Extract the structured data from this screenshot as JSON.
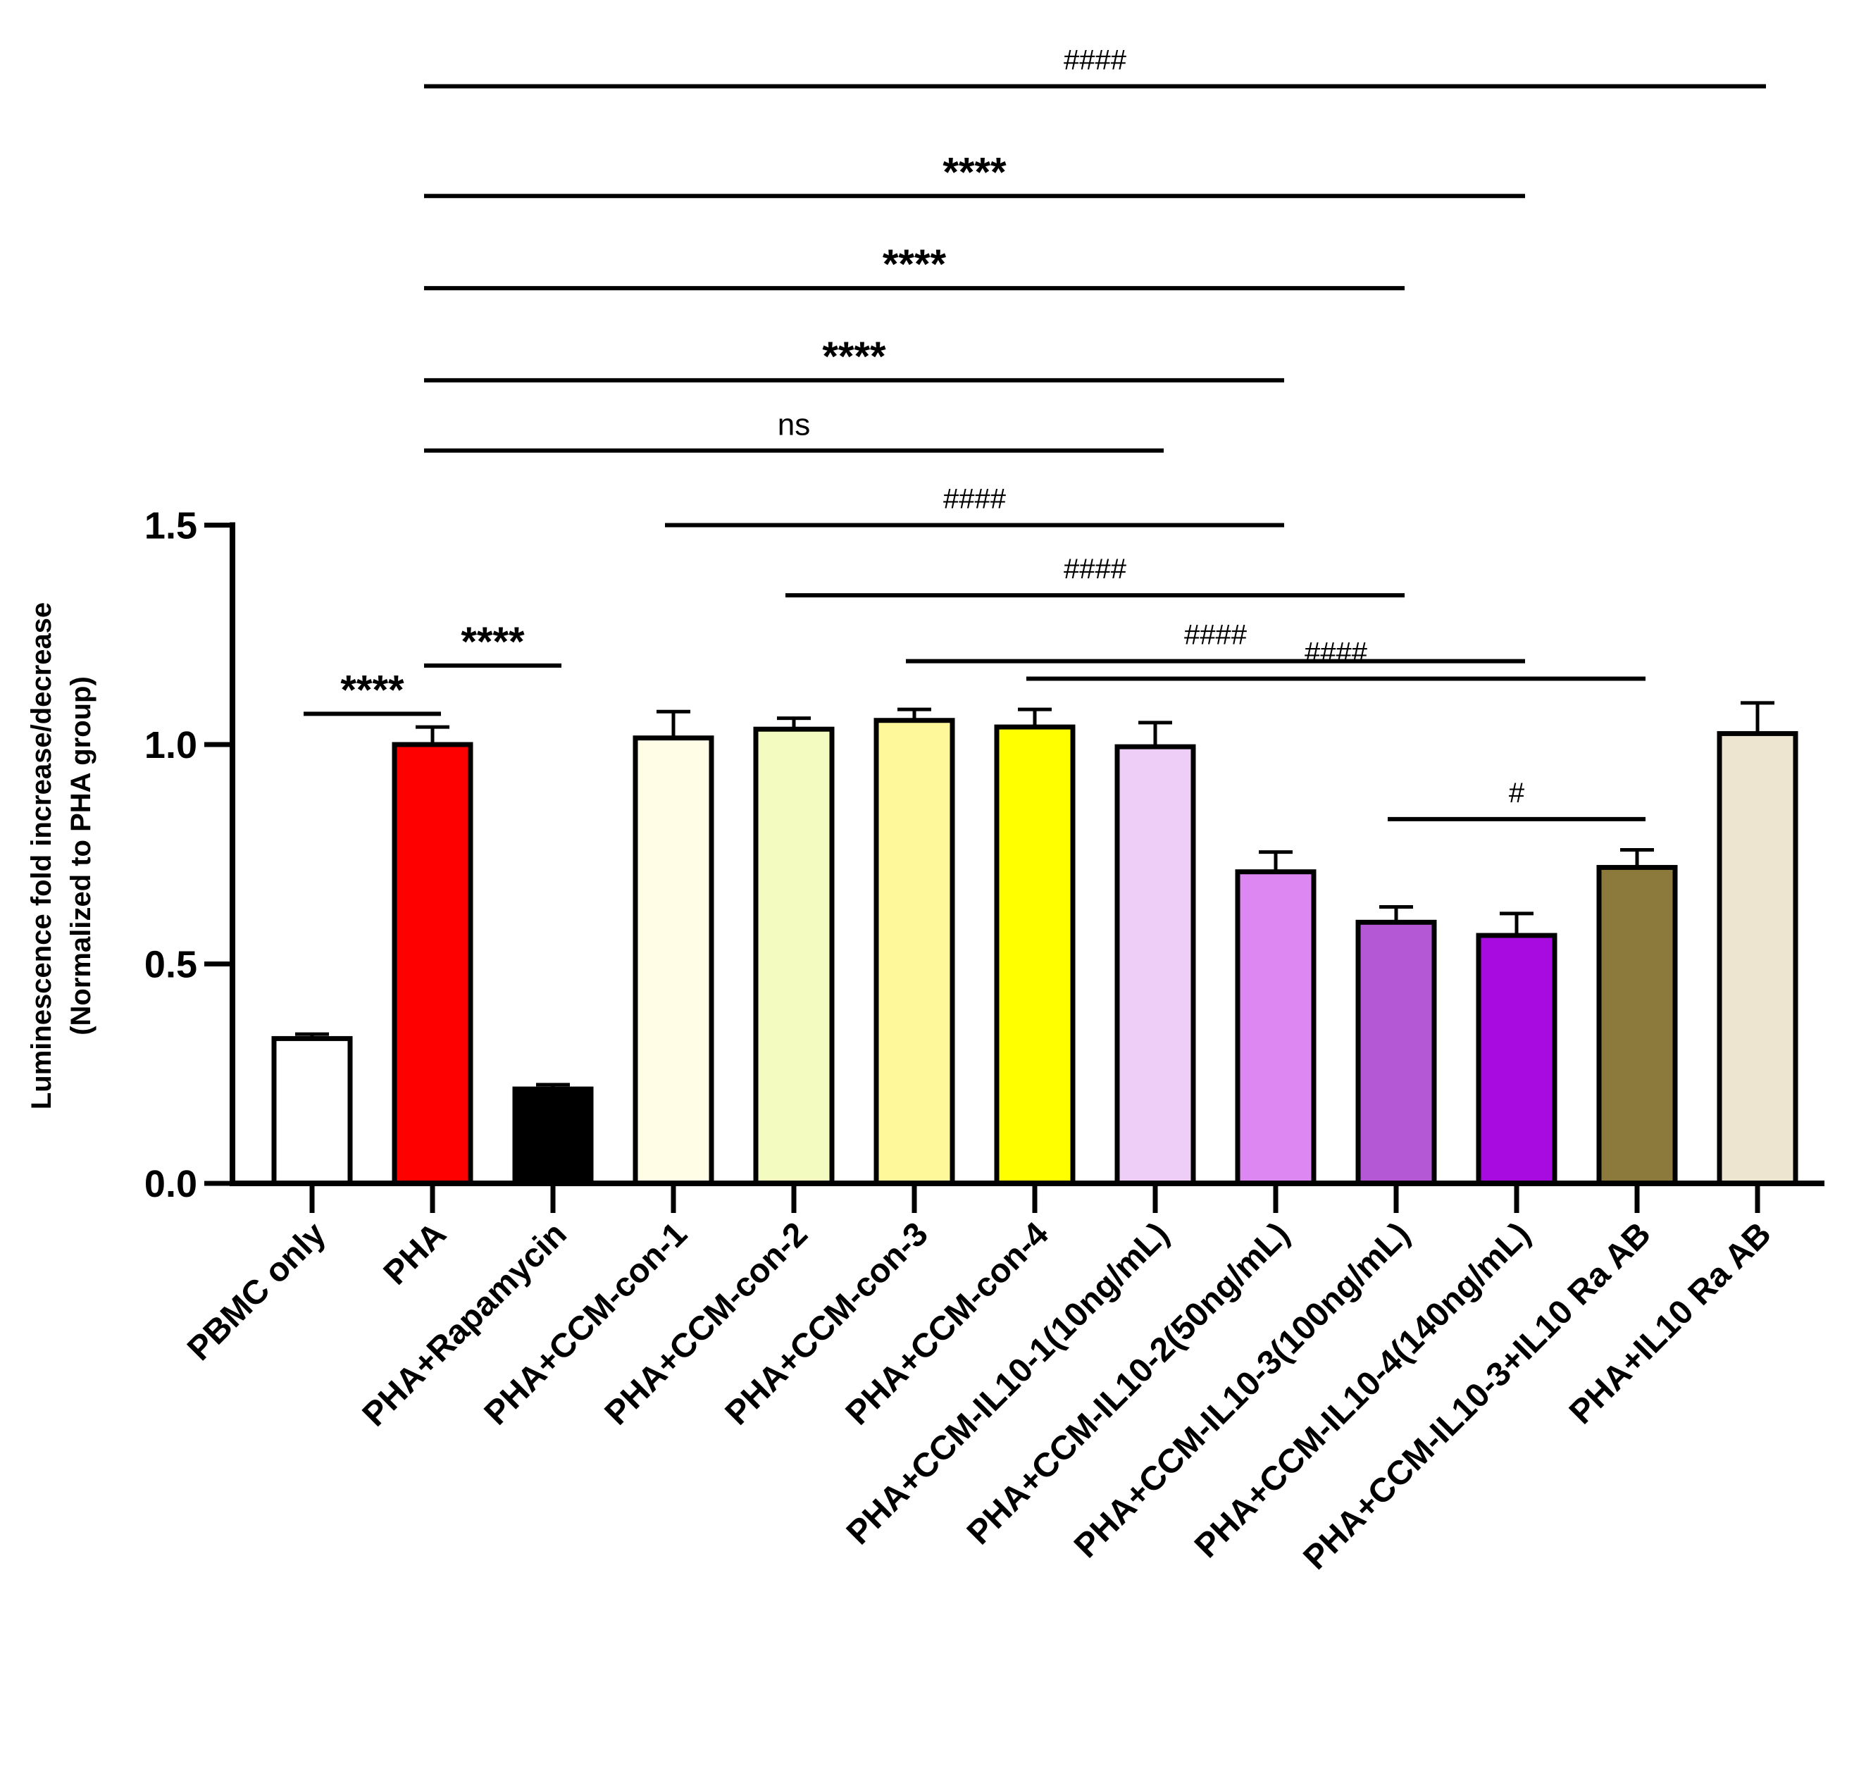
{
  "chart_data": {
    "type": "bar",
    "title": "",
    "xlabel": "",
    "ylabel": [
      "Luminescence fold increase/decrease",
      "(Normalized to PHA group)"
    ],
    "ylim": [
      0,
      1.5
    ],
    "yticks": [
      0.0,
      0.5,
      1.0,
      1.5
    ],
    "ytick_labels": [
      "0.0",
      "0.5",
      "1.0",
      "1.5"
    ],
    "categories": [
      "PBMC only",
      "PHA",
      "PHA+Rapamycin",
      "PHA+CCM-con-1",
      "PHA+CCM-con-2",
      "PHA+CCM-con-3",
      "PHA+CCM-con-4",
      "PHA+CCM-IL10-1(10ng/mL)",
      "PHA+CCM-IL10-2(50ng/mL)",
      "PHA+CCM-IL10-3(100ng/mL)",
      "PHA+CCM-IL10-4(140ng/mL)",
      "PHA+CCM-IL10-3+IL10 Ra AB",
      "PHA+IL10 Ra AB"
    ],
    "values": [
      0.33,
      1.0,
      0.215,
      1.015,
      1.035,
      1.055,
      1.04,
      0.995,
      0.71,
      0.595,
      0.565,
      0.72,
      1.025
    ],
    "errors": [
      0.01,
      0.04,
      0.01,
      0.06,
      0.025,
      0.025,
      0.04,
      0.055,
      0.045,
      0.035,
      0.05,
      0.04,
      0.07
    ],
    "colors": [
      "#ffffff",
      "#ff0000",
      "#000000",
      "#fffde6",
      "#f3fbc0",
      "#fff89a",
      "#ffff00",
      "#eecdf7",
      "#dd88f2",
      "#b558d6",
      "#a80be0",
      "#8b7a3b",
      "#ede5cf"
    ],
    "comparisons": [
      {
        "from": 0,
        "to": 1,
        "label": "****",
        "level": 1.07,
        "type": "star"
      },
      {
        "from": 1,
        "to": 2,
        "label": "****",
        "level": 1.18,
        "type": "star"
      },
      {
        "from": 1,
        "to": 12,
        "label": "####",
        "level": 2.5,
        "type": "hash"
      },
      {
        "from": 1,
        "to": 10,
        "label": "****",
        "level": 2.25,
        "type": "star"
      },
      {
        "from": 1,
        "to": 9,
        "label": "****",
        "level": 2.04,
        "type": "star"
      },
      {
        "from": 1,
        "to": 8,
        "label": "****",
        "level": 1.83,
        "type": "star"
      },
      {
        "from": 1,
        "to": 7,
        "label": "ns",
        "level": 1.67,
        "type": "text"
      },
      {
        "from": 3,
        "to": 8,
        "label": "####",
        "level": 1.5,
        "type": "hash"
      },
      {
        "from": 4,
        "to": 9,
        "label": "####",
        "level": 1.34,
        "type": "hash"
      },
      {
        "from": 5,
        "to": 10,
        "label": "####",
        "level": 1.19,
        "type": "hash"
      },
      {
        "from": 6,
        "to": 11,
        "label": "####",
        "level": 1.15,
        "type": "hash"
      },
      {
        "from": 9,
        "to": 11,
        "label": "#",
        "level": 0.83,
        "type": "hash"
      }
    ]
  }
}
